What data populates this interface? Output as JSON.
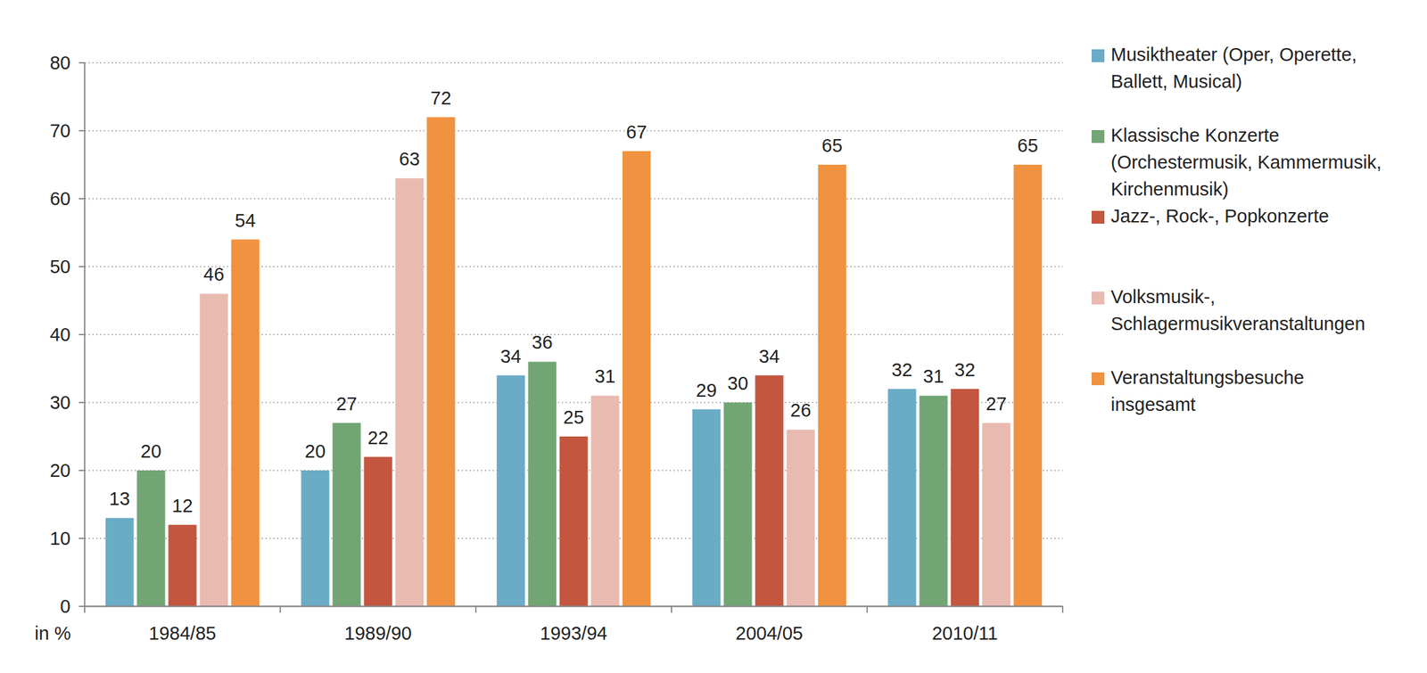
{
  "chart_data": {
    "type": "bar",
    "categories": [
      "1984/85",
      "1989/90",
      "1993/94",
      "2004/05",
      "2010/11"
    ],
    "series": [
      {
        "name": "Musiktheater (Oper, Operette, Ballett, Musical)",
        "color": "#6aabc6",
        "values": [
          13,
          20,
          34,
          29,
          32
        ]
      },
      {
        "name": "Klassische Konzerte (Orchestermusik, Kammermusik, Kirchenmusik)",
        "color": "#72a574",
        "values": [
          20,
          27,
          36,
          30,
          31
        ]
      },
      {
        "name": "Jazz-, Rock-, Popkonzerte",
        "color": "#c4553f",
        "values": [
          12,
          22,
          25,
          34,
          32
        ]
      },
      {
        "name": "Volksmusik-, Schlagermusikveranstaltungen",
        "color": "#e8bab0",
        "values": [
          46,
          63,
          31,
          26,
          27
        ]
      },
      {
        "name": "Veranstaltungsbesuche insgesamt",
        "color": "#f0923f",
        "values": [
          54,
          72,
          67,
          65,
          65
        ]
      }
    ],
    "y_label": "in %",
    "ylim": [
      0,
      80
    ],
    "yticks": [
      0,
      10,
      20,
      30,
      40,
      50,
      60,
      70,
      80
    ],
    "grid": true,
    "legend": "right",
    "data_labels": true
  }
}
